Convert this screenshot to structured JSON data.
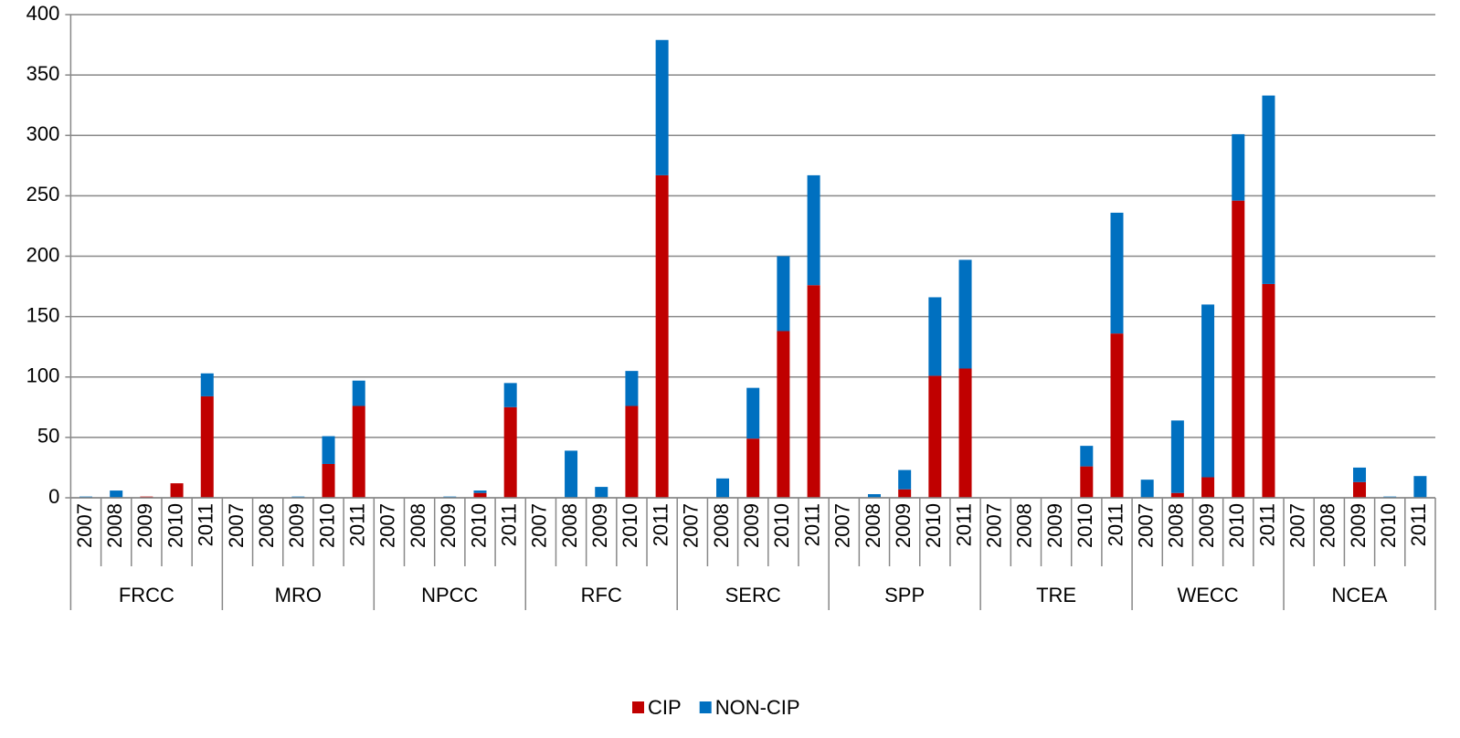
{
  "chart_data": {
    "type": "stacked_bar",
    "groups": [
      "FRCC",
      "MRO",
      "NPCC",
      "RFC",
      "SERC",
      "SPP",
      "TRE",
      "WECC",
      "NCEA"
    ],
    "categories": [
      "2007",
      "2008",
      "2009",
      "2010",
      "2011",
      "2007",
      "2008",
      "2009",
      "2010",
      "2011",
      "2007",
      "2008",
      "2009",
      "2010",
      "2011",
      "2007",
      "2008",
      "2009",
      "2010",
      "2011",
      "2007",
      "2008",
      "2009",
      "2010",
      "2011",
      "2007",
      "2008",
      "2009",
      "2010",
      "2011",
      "2007",
      "2008",
      "2009",
      "2010",
      "2011",
      "2007",
      "2008",
      "2009",
      "2010",
      "2011",
      "2007",
      "2008",
      "2009",
      "2010",
      "2011"
    ],
    "series": [
      {
        "name": "CIP",
        "color": "#c00000",
        "values": [
          0,
          0,
          1,
          12,
          84,
          0,
          0,
          0,
          28,
          76,
          0,
          0,
          0,
          4,
          75,
          0,
          0,
          0,
          76,
          267,
          0,
          0,
          49,
          138,
          176,
          0,
          0,
          7,
          101,
          107,
          0,
          0,
          0,
          26,
          136,
          0,
          4,
          17,
          246,
          177,
          0,
          0,
          13,
          0,
          0
        ]
      },
      {
        "name": "NON-CIP",
        "color": "#0070c0",
        "values": [
          1,
          6,
          0,
          0,
          19,
          0,
          0,
          1,
          23,
          21,
          0,
          0,
          1,
          2,
          20,
          0,
          39,
          9,
          29,
          112,
          0,
          16,
          42,
          62,
          91,
          0,
          3,
          16,
          65,
          90,
          0,
          0,
          0,
          17,
          100,
          15,
          60,
          143,
          55,
          156,
          0,
          0,
          12,
          1,
          18
        ]
      }
    ],
    "ylim": [
      0,
      400
    ],
    "yticks": [
      0,
      50,
      100,
      150,
      200,
      250,
      300,
      350,
      400
    ],
    "grid": true,
    "legend": "bottom"
  }
}
